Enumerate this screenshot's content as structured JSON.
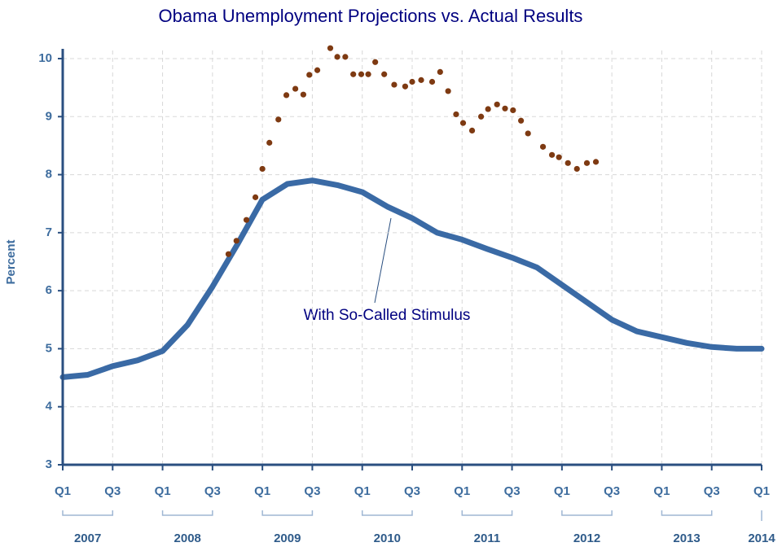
{
  "chart_data": {
    "type": "line",
    "title": "Obama Unemployment Projections vs. Actual Results",
    "ylabel": "Percent",
    "annotation": "With So-Called Stimulus",
    "xlim": [
      2007,
      2014
    ],
    "ylim": [
      3,
      10
    ],
    "yticks": [
      3,
      4,
      5,
      6,
      7,
      8,
      9,
      10
    ],
    "xticks": [
      {
        "value": 2007,
        "label": "Q1"
      },
      {
        "value": 2007.5,
        "label": "Q3"
      },
      {
        "value": 2008,
        "label": "Q1"
      },
      {
        "value": 2008.5,
        "label": "Q3"
      },
      {
        "value": 2009,
        "label": "Q1"
      },
      {
        "value": 2009.5,
        "label": "Q3"
      },
      {
        "value": 2010,
        "label": "Q1"
      },
      {
        "value": 2010.5,
        "label": "Q3"
      },
      {
        "value": 2011,
        "label": "Q1"
      },
      {
        "value": 2011.5,
        "label": "Q3"
      },
      {
        "value": 2012,
        "label": "Q1"
      },
      {
        "value": 2012.5,
        "label": "Q3"
      },
      {
        "value": 2013,
        "label": "Q1"
      },
      {
        "value": 2013.5,
        "label": "Q3"
      },
      {
        "value": 2014,
        "label": "Q1"
      }
    ],
    "year_labels": [
      "2007",
      "2008",
      "2009",
      "2010",
      "2011",
      "2012",
      "2013",
      "2014"
    ],
    "grid": true,
    "series": [
      {
        "type": "line",
        "color": "#3a6aa5",
        "x": [
          2007,
          2007.25,
          2007.5,
          2007.75,
          2008,
          2008.25,
          2008.5,
          2008.75,
          2009,
          2009.25,
          2009.5,
          2009.75,
          2010,
          2010.25,
          2010.5,
          2010.75,
          2011,
          2011.25,
          2011.5,
          2011.75,
          2012,
          2012.25,
          2012.5,
          2012.75,
          2013,
          2013.25,
          2013.5,
          2013.75,
          2014
        ],
        "values": [
          4.51,
          4.55,
          4.7,
          4.8,
          4.96,
          5.41,
          6.07,
          6.8,
          7.57,
          7.84,
          7.9,
          7.82,
          7.7,
          7.45,
          7.25,
          7.0,
          6.88,
          6.72,
          6.57,
          6.4,
          6.1,
          5.8,
          5.5,
          5.3,
          5.2,
          5.1,
          5.03,
          5.0,
          5.0
        ]
      },
      {
        "type": "scatter",
        "color": "#7e3a12",
        "x": [
          2008.66,
          2008.74,
          2008.84,
          2008.93,
          2009.0,
          2009.07,
          2009.16,
          2009.24,
          2009.33,
          2009.41,
          2009.47,
          2009.55,
          2009.68,
          2009.75,
          2009.83,
          2009.91,
          2009.99,
          2010.06,
          2010.13,
          2010.22,
          2010.32,
          2010.43,
          2010.5,
          2010.59,
          2010.7,
          2010.78,
          2010.86,
          2010.94,
          2011.01,
          2011.1,
          2011.19,
          2011.26,
          2011.35,
          2011.43,
          2011.51,
          2011.59,
          2011.66,
          2011.81,
          2011.9,
          2011.97,
          2012.06,
          2012.15,
          2012.25,
          2012.34
        ],
        "values": [
          6.63,
          6.86,
          7.22,
          7.61,
          8.1,
          8.55,
          8.95,
          9.37,
          9.48,
          9.38,
          9.72,
          9.8,
          10.18,
          10.03,
          10.03,
          9.73,
          9.73,
          9.73,
          9.94,
          9.73,
          9.55,
          9.52,
          9.6,
          9.63,
          9.6,
          9.77,
          9.44,
          9.04,
          8.89,
          8.76,
          9.0,
          9.13,
          9.21,
          9.14,
          9.11,
          8.93,
          8.71,
          8.48,
          8.34,
          8.3,
          8.2,
          8.1,
          8.2,
          8.22
        ]
      }
    ]
  }
}
